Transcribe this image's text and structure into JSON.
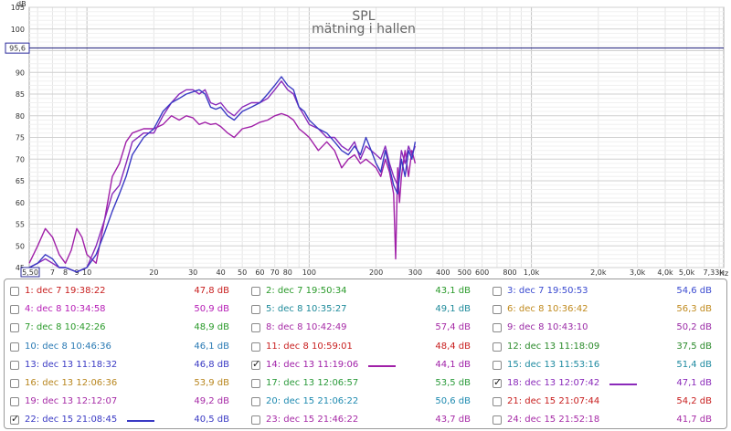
{
  "chart_data": {
    "type": "line",
    "title": "SPL",
    "subtitle": "mätning i hallen",
    "y_unit": "dB",
    "x_unit": "Hz",
    "xscale": "log",
    "xlim": [
      5.5,
      7330
    ],
    "ylim": [
      45,
      105
    ],
    "grid": true,
    "x_ticks": [
      {
        "v": 5.5,
        "label": "5,50"
      },
      {
        "v": 7,
        "label": "7"
      },
      {
        "v": 8,
        "label": "8"
      },
      {
        "v": 9,
        "label": "9"
      },
      {
        "v": 10,
        "label": "10"
      },
      {
        "v": 20,
        "label": "20"
      },
      {
        "v": 30,
        "label": "30"
      },
      {
        "v": 40,
        "label": "40"
      },
      {
        "v": 50,
        "label": "50"
      },
      {
        "v": 60,
        "label": "60"
      },
      {
        "v": 70,
        "label": "70"
      },
      {
        "v": 80,
        "label": "80"
      },
      {
        "v": 100,
        "label": "100"
      },
      {
        "v": 200,
        "label": "200"
      },
      {
        "v": 300,
        "label": "300"
      },
      {
        "v": 400,
        "label": "400"
      },
      {
        "v": 500,
        "label": "500"
      },
      {
        "v": 600,
        "label": "600"
      },
      {
        "v": 800,
        "label": "800"
      },
      {
        "v": 1000,
        "label": "1,0k"
      },
      {
        "v": 2000,
        "label": "2,0k"
      },
      {
        "v": 3000,
        "label": "3,0k"
      },
      {
        "v": 4000,
        "label": "4,0k"
      },
      {
        "v": 5000,
        "label": "5,0k"
      },
      {
        "v": 7330,
        "label": "7,33k"
      }
    ],
    "x_unit_label": "Hz",
    "y_ticks": [
      {
        "v": 45,
        "label": "45"
      },
      {
        "v": 50,
        "label": "50"
      },
      {
        "v": 55,
        "label": "55"
      },
      {
        "v": 60,
        "label": "60"
      },
      {
        "v": 65,
        "label": "65"
      },
      {
        "v": 70,
        "label": "70"
      },
      {
        "v": 75,
        "label": "75"
      },
      {
        "v": 80,
        "label": "80"
      },
      {
        "v": 85,
        "label": "85"
      },
      {
        "v": 90,
        "label": "90"
      },
      {
        "v": 100,
        "label": "100"
      },
      {
        "v": 105,
        "label": "105"
      }
    ],
    "cursor": {
      "y": 95.6,
      "y_label": "95,6",
      "x_label": "5,50"
    },
    "series": [
      {
        "name": "14: dec 13 11:19:06",
        "color": "#a020a8",
        "x": [
          5.5,
          6,
          6.5,
          7,
          7.5,
          8,
          8.5,
          9,
          9.5,
          10,
          11,
          12,
          13,
          14,
          15,
          16,
          18,
          20,
          22,
          24,
          26,
          28,
          30,
          32,
          34,
          36,
          38,
          40,
          43,
          46,
          50,
          55,
          60,
          65,
          70,
          75,
          80,
          85,
          90,
          95,
          100,
          110,
          120,
          130,
          140,
          150,
          160,
          170,
          180,
          190,
          200,
          210,
          220,
          230,
          240,
          245,
          250,
          255,
          260,
          270,
          280,
          290,
          300
        ],
        "y": [
          46,
          50,
          54,
          52,
          48,
          46,
          49,
          54,
          52,
          48,
          46,
          56,
          66,
          69,
          74,
          76,
          77,
          77,
          78,
          80,
          79,
          80,
          79.5,
          78,
          78.5,
          78,
          78.2,
          77.5,
          76,
          75,
          77,
          77.5,
          78.5,
          79,
          80,
          80.5,
          80,
          79,
          77,
          76,
          75,
          72,
          74,
          72,
          68,
          70,
          71,
          69,
          70,
          69,
          68,
          66,
          70,
          67,
          62,
          47,
          68,
          60,
          66,
          72,
          66,
          72,
          69
        ]
      },
      {
        "name": "18: dec 13 12:07:42",
        "color": "#8a2aba",
        "x": [
          5.5,
          6,
          6.5,
          7,
          7.5,
          8,
          9,
          10,
          11,
          12,
          13,
          14,
          15,
          16,
          18,
          20,
          22,
          24,
          26,
          28,
          30,
          32,
          34,
          36,
          38,
          40,
          43,
          46,
          50,
          55,
          60,
          65,
          70,
          75,
          80,
          85,
          90,
          95,
          100,
          110,
          120,
          130,
          140,
          150,
          160,
          170,
          180,
          190,
          200,
          210,
          220,
          230,
          240,
          250,
          260,
          270,
          280,
          290,
          300
        ],
        "y": [
          45,
          46,
          47,
          46,
          45,
          45,
          44,
          45,
          50,
          56,
          62,
          64,
          69,
          74,
          76,
          76,
          80,
          83,
          85,
          86,
          86,
          85,
          86,
          83,
          82.5,
          83,
          81,
          80,
          82,
          83,
          83,
          84,
          86,
          88,
          86,
          85,
          82,
          80,
          78,
          77,
          75,
          75,
          73,
          72,
          74,
          70,
          73,
          72,
          71,
          70,
          73,
          69,
          66,
          64,
          72,
          69,
          73,
          71,
          73
        ]
      },
      {
        "name": "22: dec 15 21:08:45",
        "color": "#3a3ac4",
        "x": [
          5.5,
          6,
          6.5,
          7,
          7.5,
          8,
          9,
          10,
          11,
          12,
          13,
          14,
          15,
          16,
          18,
          20,
          22,
          24,
          26,
          28,
          30,
          32,
          34,
          36,
          38,
          40,
          43,
          46,
          50,
          55,
          60,
          65,
          70,
          75,
          80,
          85,
          90,
          95,
          100,
          110,
          120,
          130,
          140,
          150,
          160,
          170,
          180,
          190,
          200,
          210,
          220,
          230,
          240,
          250,
          260,
          270,
          280,
          290,
          300
        ],
        "y": [
          45,
          46,
          48,
          47,
          45,
          45,
          44,
          45,
          48,
          53,
          58,
          62,
          66,
          71,
          75,
          77,
          81,
          83,
          84,
          85,
          85.5,
          86,
          85,
          82,
          81.5,
          82,
          80,
          79,
          81,
          82,
          83,
          85,
          87,
          89,
          87,
          86,
          82,
          81,
          79,
          77,
          76,
          74,
          72,
          71,
          73,
          71,
          75,
          72,
          69,
          67,
          72,
          68,
          64,
          62,
          70,
          66,
          72,
          70,
          74
        ]
      }
    ]
  },
  "legend": {
    "rows": [
      [
        {
          "label": "1: dec 7 19:38:22",
          "value": "47,8 dB",
          "color": "#c81e1e",
          "checked": false
        },
        {
          "label": "2: dec 7 19:50:34",
          "value": "43,1 dB",
          "color": "#2a9a2a",
          "checked": false
        },
        {
          "label": "3: dec 7 19:50:53",
          "value": "54,6 dB",
          "color": "#3a4ad0",
          "checked": false
        }
      ],
      [
        {
          "label": "4: dec 8 10:34:58",
          "value": "50,9 dB",
          "color": "#b61eb6",
          "checked": false
        },
        {
          "label": "5: dec 8 10:35:27",
          "value": "49,1 dB",
          "color": "#1e8a9a",
          "checked": false
        },
        {
          "label": "6: dec 8 10:36:42",
          "value": "56,3 dB",
          "color": "#c08a1e",
          "checked": false
        }
      ],
      [
        {
          "label": "7: dec 8 10:42:26",
          "value": "48,9 dB",
          "color": "#2a9a2a",
          "checked": false
        },
        {
          "label": "8: dec 8 10:42:49",
          "value": "57,4 dB",
          "color": "#a62aa6",
          "checked": false
        },
        {
          "label": "9: dec 8 10:43:10",
          "value": "50,2 dB",
          "color": "#9a2aa6",
          "checked": false
        }
      ],
      [
        {
          "label": "10: dec 8 10:46:36",
          "value": "46,1 dB",
          "color": "#2a7ab4",
          "checked": false
        },
        {
          "label": "11: dec 8 10:59:01",
          "value": "48,4 dB",
          "color": "#c81e1e",
          "checked": false
        },
        {
          "label": "12: dec 13 11:18:09",
          "value": "37,5 dB",
          "color": "#2a8a2a",
          "checked": false
        }
      ],
      [
        {
          "label": "13: dec 13 11:18:32",
          "value": "46,8 dB",
          "color": "#3a3ac4",
          "checked": false
        },
        {
          "label": "14: dec 13 11:19:06",
          "value": "44,1 dB",
          "color": "#a020a8",
          "checked": true
        },
        {
          "label": "15: dec 13 11:53:16",
          "value": "51,4 dB",
          "color": "#1e8aa0",
          "checked": false
        }
      ],
      [
        {
          "label": "16: dec 13 12:06:36",
          "value": "53,9 dB",
          "color": "#b8861e",
          "checked": false
        },
        {
          "label": "17: dec 13 12:06:57",
          "value": "53,5 dB",
          "color": "#2a9a3a",
          "checked": false
        },
        {
          "label": "18: dec 13 12:07:42",
          "value": "47,1 dB",
          "color": "#8a2aba",
          "checked": true
        }
      ],
      [
        {
          "label": "19: dec 13 12:12:07",
          "value": "49,2 dB",
          "color": "#a62aa6",
          "checked": false
        },
        {
          "label": "20: dec 15 21:06:22",
          "value": "50,6 dB",
          "color": "#1e8ab0",
          "checked": false
        },
        {
          "label": "21: dec 15 21:07:44",
          "value": "54,2 dB",
          "color": "#c81e1e",
          "checked": false
        }
      ],
      [
        {
          "label": "22: dec 15 21:08:45",
          "value": "40,5 dB",
          "color": "#3a3ac4",
          "checked": true
        },
        {
          "label": "23: dec 15 21:46:22",
          "value": "43,7 dB",
          "color": "#a62aa6",
          "checked": false
        },
        {
          "label": "24: dec 15 21:52:18",
          "value": "41,7 dB",
          "color": "#a62aa6",
          "checked": false
        }
      ]
    ]
  }
}
